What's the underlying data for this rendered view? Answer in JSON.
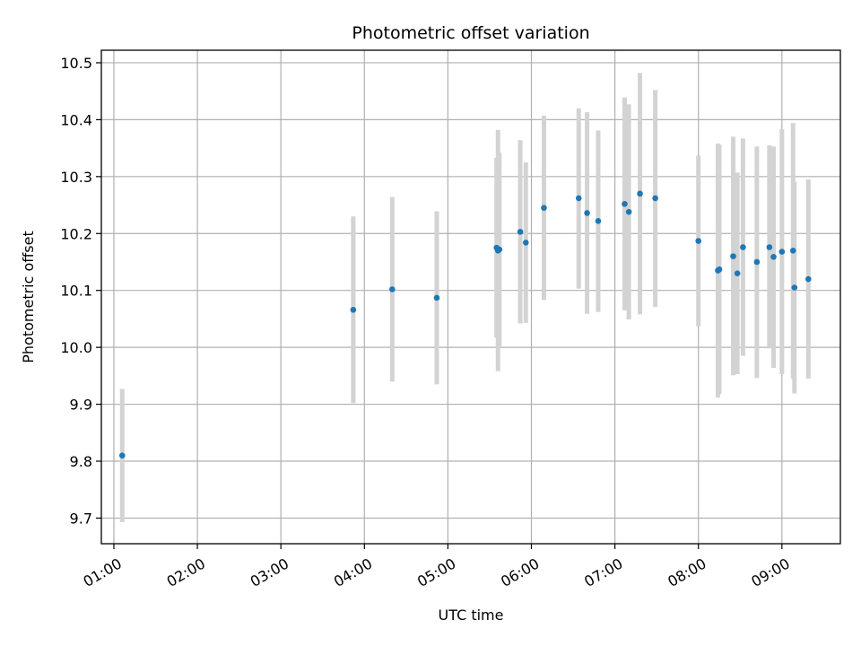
{
  "chart_data": {
    "type": "scatter",
    "title": "Photometric offset variation",
    "xlabel": "UTC time",
    "ylabel": "Photometric offset",
    "x_ticks": [
      "01:00",
      "02:00",
      "03:00",
      "04:00",
      "05:00",
      "06:00",
      "07:00",
      "08:00",
      "09:00"
    ],
    "y_ticks": [
      "9.7",
      "9.8",
      "9.9",
      "10.0",
      "10.1",
      "10.2",
      "10.3",
      "10.4",
      "10.5"
    ],
    "xlim": [
      "00:51",
      "09:42"
    ],
    "ylim": [
      9.655,
      10.522
    ],
    "grid": true,
    "colors": {
      "point": "#1f77b4",
      "errorbar": "#d3d3d3",
      "grid": "#b0b0b0"
    },
    "points": [
      {
        "x": "01:06",
        "y": 9.81,
        "ylo": 9.693,
        "yhi": 9.927
      },
      {
        "x": "03:52",
        "y": 10.066,
        "ylo": 9.902,
        "yhi": 10.23
      },
      {
        "x": "04:20",
        "y": 10.102,
        "ylo": 9.94,
        "yhi": 10.264
      },
      {
        "x": "04:52",
        "y": 10.087,
        "ylo": 9.935,
        "yhi": 10.239
      },
      {
        "x": "05:35",
        "y": 10.175,
        "ylo": 10.017,
        "yhi": 10.333
      },
      {
        "x": "05:36",
        "y": 10.17,
        "ylo": 9.958,
        "yhi": 10.382
      },
      {
        "x": "05:37",
        "y": 10.172,
        "ylo": 10.002,
        "yhi": 10.342
      },
      {
        "x": "05:52",
        "y": 10.203,
        "ylo": 10.042,
        "yhi": 10.364
      },
      {
        "x": "05:56",
        "y": 10.184,
        "ylo": 10.043,
        "yhi": 10.325
      },
      {
        "x": "06:09",
        "y": 10.245,
        "ylo": 10.083,
        "yhi": 10.407
      },
      {
        "x": "06:34",
        "y": 10.262,
        "ylo": 10.103,
        "yhi": 10.42
      },
      {
        "x": "06:40",
        "y": 10.236,
        "ylo": 10.059,
        "yhi": 10.413
      },
      {
        "x": "06:48",
        "y": 10.222,
        "ylo": 10.062,
        "yhi": 10.381
      },
      {
        "x": "07:07",
        "y": 10.252,
        "ylo": 10.065,
        "yhi": 10.439
      },
      {
        "x": "07:10",
        "y": 10.238,
        "ylo": 10.049,
        "yhi": 10.427
      },
      {
        "x": "07:18",
        "y": 10.27,
        "ylo": 10.058,
        "yhi": 10.482
      },
      {
        "x": "07:29",
        "y": 10.262,
        "ylo": 10.071,
        "yhi": 10.452
      },
      {
        "x": "08:00",
        "y": 10.187,
        "ylo": 10.037,
        "yhi": 10.337
      },
      {
        "x": "08:14",
        "y": 10.135,
        "ylo": 9.912,
        "yhi": 10.358
      },
      {
        "x": "08:15",
        "y": 10.137,
        "ylo": 9.918,
        "yhi": 10.356
      },
      {
        "x": "08:25",
        "y": 10.16,
        "ylo": 9.951,
        "yhi": 10.37
      },
      {
        "x": "08:28",
        "y": 10.13,
        "ylo": 9.953,
        "yhi": 10.307
      },
      {
        "x": "08:32",
        "y": 10.176,
        "ylo": 9.985,
        "yhi": 10.367
      },
      {
        "x": "08:42",
        "y": 10.15,
        "ylo": 9.946,
        "yhi": 10.353
      },
      {
        "x": "08:51",
        "y": 10.176,
        "ylo": 9.998,
        "yhi": 10.355
      },
      {
        "x": "08:54",
        "y": 10.159,
        "ylo": 9.964,
        "yhi": 10.353
      },
      {
        "x": "09:00",
        "y": 10.168,
        "ylo": 9.953,
        "yhi": 10.383
      },
      {
        "x": "09:08",
        "y": 10.17,
        "ylo": 9.945,
        "yhi": 10.394
      },
      {
        "x": "09:09",
        "y": 10.105,
        "ylo": 9.919,
        "yhi": 10.291
      },
      {
        "x": "09:19",
        "y": 10.12,
        "ylo": 9.945,
        "yhi": 10.295
      }
    ]
  }
}
